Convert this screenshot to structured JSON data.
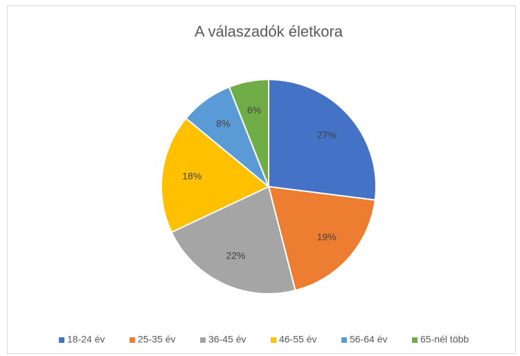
{
  "chart_data": {
    "type": "pie",
    "title": "A válaszadók életkora",
    "categories": [
      "18-24 év",
      "25-35 év",
      "36-45 év",
      "46-55 év",
      "56-64 év",
      "65-nél több"
    ],
    "values": [
      27,
      19,
      22,
      18,
      8,
      6
    ],
    "value_labels": [
      "27%",
      "19%",
      "22%",
      "18%",
      "8%",
      "6%"
    ],
    "colors": [
      "#4472c4",
      "#ed7d31",
      "#a5a5a5",
      "#ffc000",
      "#5b9bd5",
      "#70ad47"
    ],
    "legend": "bottom"
  }
}
